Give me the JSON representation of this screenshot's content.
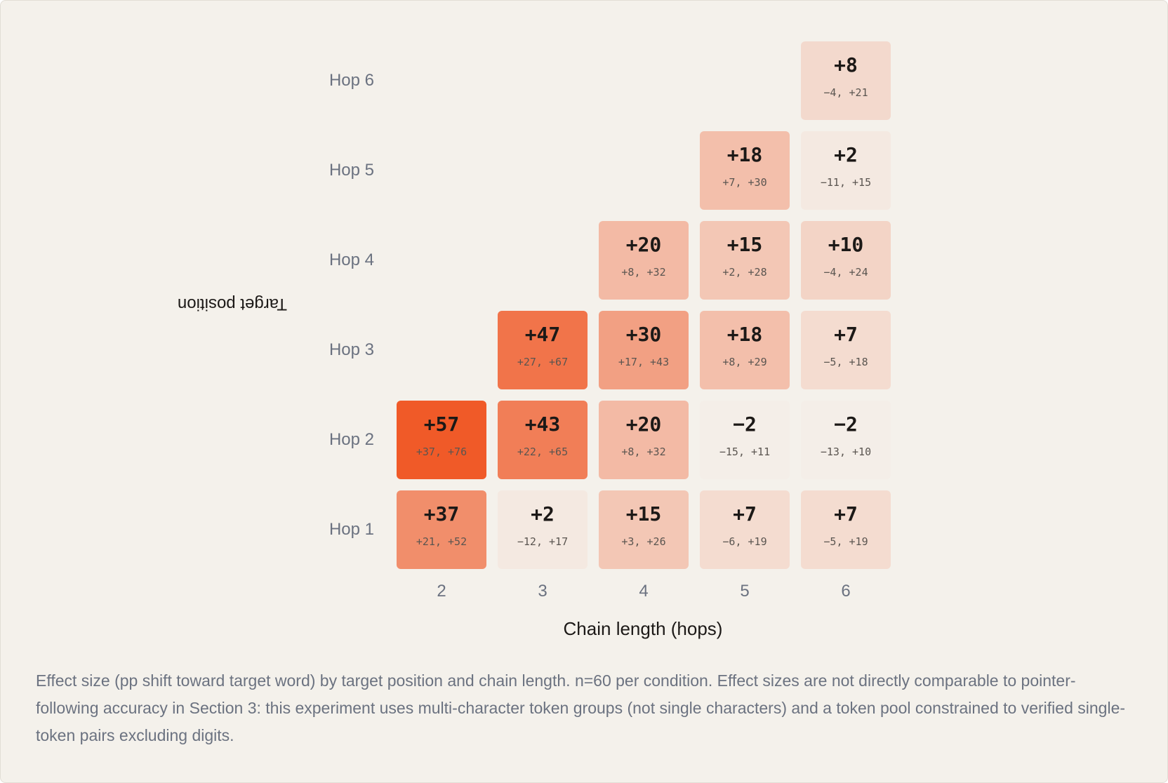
{
  "chart_data": {
    "type": "heatmap",
    "xlabel": "Chain length (hops)",
    "ylabel": "Target position",
    "x_categories": [
      "2",
      "3",
      "4",
      "5",
      "6"
    ],
    "y_categories": [
      "Hop 1",
      "Hop 2",
      "Hop 3",
      "Hop 4",
      "Hop 5",
      "Hop 6"
    ],
    "max_value": 57,
    "cells": [
      {
        "x": "2",
        "y": "Hop 1",
        "value": 37,
        "label": "+37",
        "ci": "+21, +52"
      },
      {
        "x": "2",
        "y": "Hop 2",
        "value": 57,
        "label": "+57",
        "ci": "+37, +76"
      },
      {
        "x": "3",
        "y": "Hop 1",
        "value": 2,
        "label": "+2",
        "ci": "−12, +17"
      },
      {
        "x": "3",
        "y": "Hop 2",
        "value": 43,
        "label": "+43",
        "ci": "+22, +65"
      },
      {
        "x": "3",
        "y": "Hop 3",
        "value": 47,
        "label": "+47",
        "ci": "+27, +67"
      },
      {
        "x": "4",
        "y": "Hop 1",
        "value": 15,
        "label": "+15",
        "ci": "+3, +26"
      },
      {
        "x": "4",
        "y": "Hop 2",
        "value": 20,
        "label": "+20",
        "ci": "+8, +32"
      },
      {
        "x": "4",
        "y": "Hop 3",
        "value": 30,
        "label": "+30",
        "ci": "+17, +43"
      },
      {
        "x": "4",
        "y": "Hop 4",
        "value": 20,
        "label": "+20",
        "ci": "+8, +32"
      },
      {
        "x": "5",
        "y": "Hop 1",
        "value": 7,
        "label": "+7",
        "ci": "−6, +19"
      },
      {
        "x": "5",
        "y": "Hop 2",
        "value": -2,
        "label": "−2",
        "ci": "−15, +11"
      },
      {
        "x": "5",
        "y": "Hop 3",
        "value": 18,
        "label": "+18",
        "ci": "+8, +29"
      },
      {
        "x": "5",
        "y": "Hop 4",
        "value": 15,
        "label": "+15",
        "ci": "+2, +28"
      },
      {
        "x": "5",
        "y": "Hop 5",
        "value": 18,
        "label": "+18",
        "ci": "+7, +30"
      },
      {
        "x": "6",
        "y": "Hop 1",
        "value": 7,
        "label": "+7",
        "ci": "−5, +19"
      },
      {
        "x": "6",
        "y": "Hop 2",
        "value": -2,
        "label": "−2",
        "ci": "−13, +10"
      },
      {
        "x": "6",
        "y": "Hop 3",
        "value": 7,
        "label": "+7",
        "ci": "−5, +18"
      },
      {
        "x": "6",
        "y": "Hop 4",
        "value": 10,
        "label": "+10",
        "ci": "−4, +24"
      },
      {
        "x": "6",
        "y": "Hop 5",
        "value": 2,
        "label": "+2",
        "ci": "−11, +15"
      },
      {
        "x": "6",
        "y": "Hop 6",
        "value": 8,
        "label": "+8",
        "ci": "−4, +21"
      }
    ]
  },
  "caption": "Effect size (pp shift toward target word) by target position and chain length. n=60 per condition. Effect sizes are not directly comparable to pointer-following accuracy in Section 3: this experiment uses multi-character token groups (not single characters) and a token pool constrained to verified single-token pairs excluding digits.",
  "colors": {
    "background": "#f4f1eb",
    "scale_low": "#f4eee8",
    "scale_high": "#f05a28"
  }
}
